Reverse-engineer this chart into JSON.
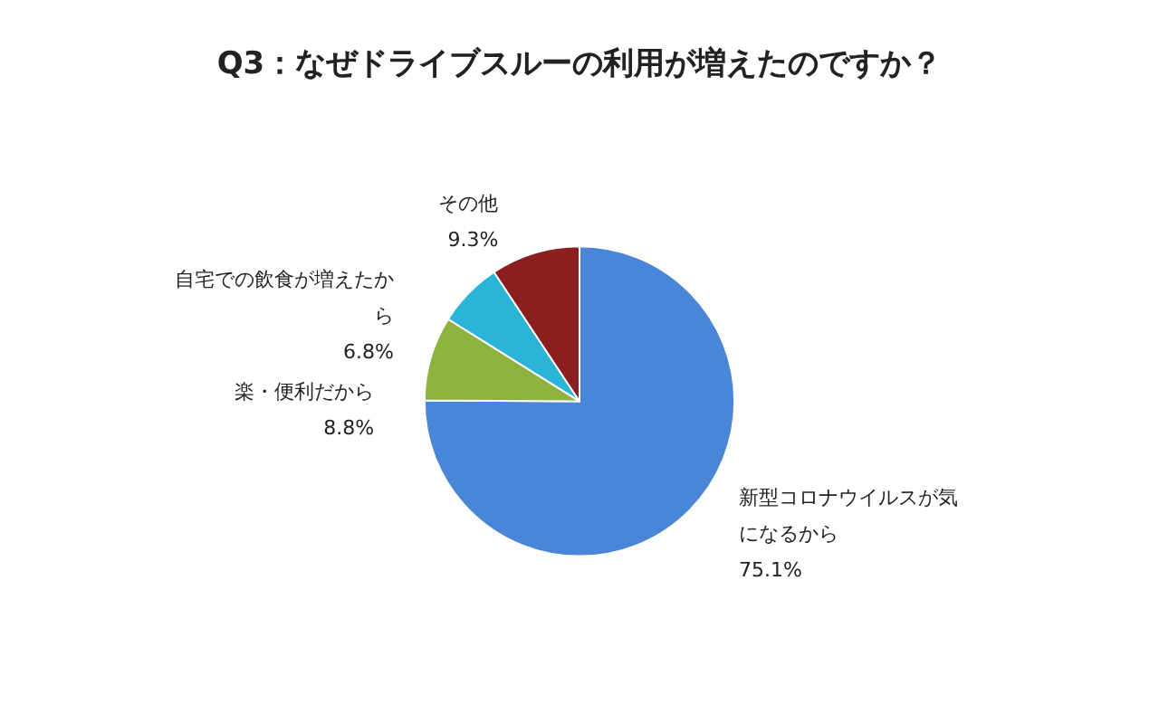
{
  "chart_data": {
    "type": "pie",
    "title": "Q3：なぜドライブスルーの利用が増えたのですか？",
    "categories": [
      "新型コロナウイルスが気になるから",
      "楽・便利だから",
      "自宅での飲食が増えたから",
      "その他"
    ],
    "values": [
      75.1,
      8.8,
      6.8,
      9.3
    ],
    "colors": [
      "#4a86d8",
      "#8db33e",
      "#2ab5d8",
      "#8b1e1e"
    ],
    "value_labels": [
      "75.1%",
      "8.8%",
      "6.8%",
      "9.3%"
    ],
    "legend": false
  }
}
